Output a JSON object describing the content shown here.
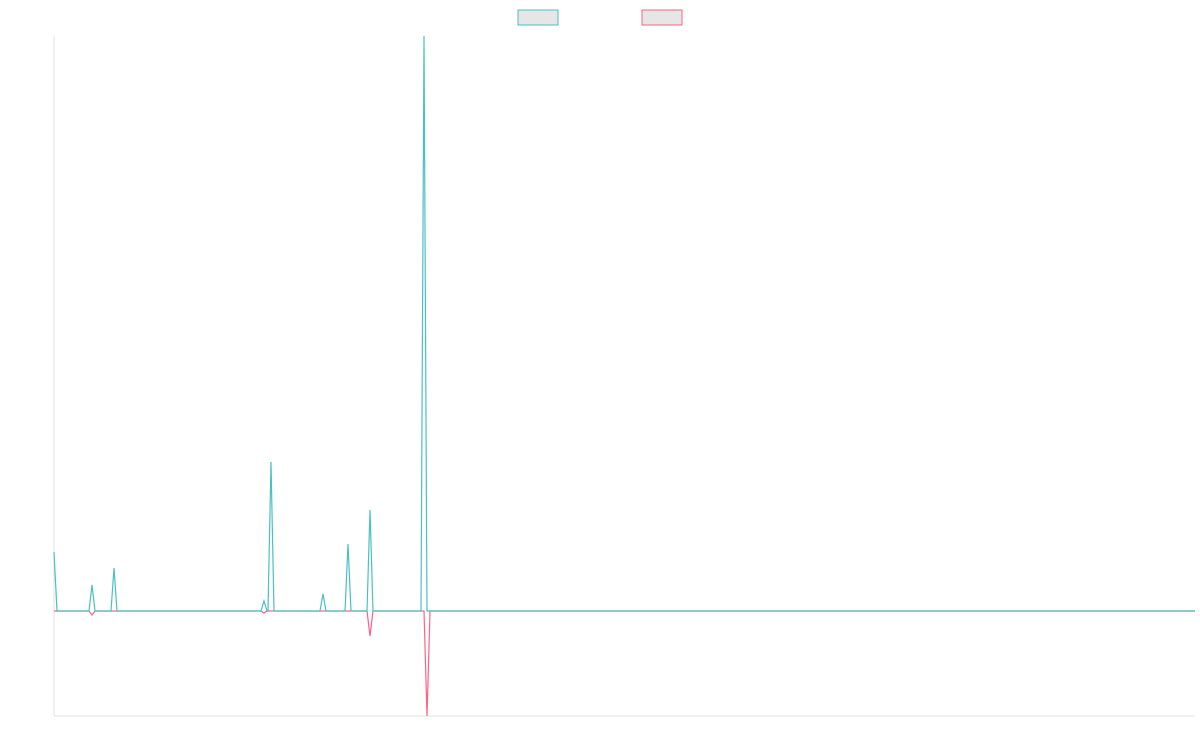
{
  "chart_data": {
    "type": "line",
    "x": [
      0,
      3,
      35,
      38,
      41,
      57,
      60,
      63,
      207,
      210,
      213,
      214,
      217,
      220,
      266,
      269,
      272,
      291,
      294,
      297,
      313,
      316,
      319,
      367,
      370,
      373,
      376,
      1141
    ],
    "series": [
      {
        "color": "#4bc0c0",
        "values": [
          59,
          0,
          0,
          26,
          0,
          0,
          43,
          0,
          0,
          10,
          0,
          0,
          149,
          0,
          0,
          17,
          0,
          0,
          67,
          0,
          0,
          101,
          0,
          0,
          575,
          0,
          0,
          0
        ]
      },
      {
        "color": "#ff6384",
        "values": [
          0,
          0,
          0,
          -4,
          0,
          0,
          0,
          0,
          0,
          -2,
          0,
          0,
          0,
          0,
          0,
          0,
          0,
          0,
          0,
          0,
          0,
          -25,
          0,
          0,
          0,
          -105,
          0,
          0
        ]
      }
    ],
    "xlim": [
      0,
      1141
    ],
    "ylim": [
      -105,
      575
    ],
    "legend": "top"
  }
}
